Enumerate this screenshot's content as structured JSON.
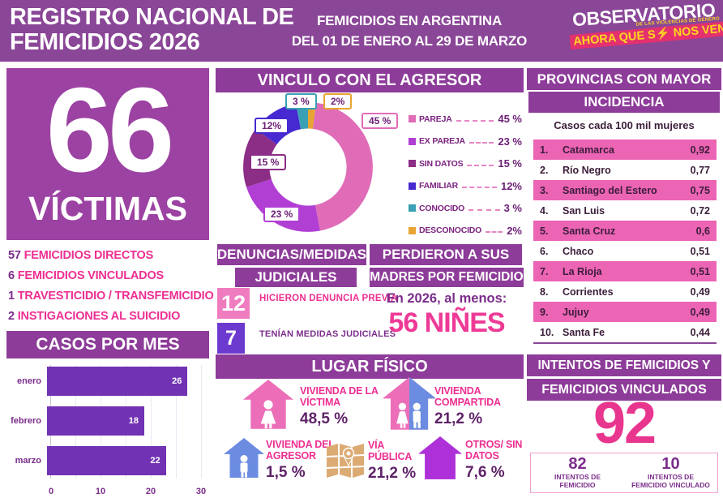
{
  "colors": {
    "header_purple": "#8a4697",
    "section_bar_purple": "#8d3c99",
    "victims_block_purple": "#9c42a2",
    "pink_text": "#ed2f92",
    "deep_purple_text": "#7b2d8b",
    "bar_chart_purple": "#7132b4",
    "table_row_pink": "#ec64b4",
    "box_pink": "#f07cc0",
    "box_violet": "#6d3ad0",
    "logo_yellow": "#ffd71e",
    "logo_pink": "#e3316f"
  },
  "header": {
    "title_line1": "REGISTRO NACIONAL DE",
    "title_line2": "FEMICIDIOS 2026",
    "subtitle_line1": "FEMICIDIOS EN ARGENTINA",
    "subtitle_line2": "DEL 01 DE ENERO AL 29 DE MARZO",
    "logo": {
      "name": "OBSERVATORIO",
      "small": "DE LAS VIOLENCIAS DE GÉNERO",
      "tagline": "AHORA QUE S⚡ NOS VEN"
    }
  },
  "victims": {
    "count": "66",
    "label": "VÍCTIMAS",
    "breakdown": [
      {
        "num": "57",
        "label": "FEMICIDIOS DIRECTOS"
      },
      {
        "num": "6",
        "label": "FEMICIDIOS VINCULADOS"
      },
      {
        "num": "1",
        "label": "TRAVESTICIDIO / TRANSFEMICIDIO"
      },
      {
        "num": "2",
        "label": "INSTIGACIONES AL SUICIDIO"
      }
    ]
  },
  "casos_por_mes": {
    "title": "CASOS POR MES"
  },
  "vinculo": {
    "title": "VINCULO CON EL AGRESOR"
  },
  "denuncias": {
    "title_line1": "DENUNCIAS/MEDIDAS",
    "title_line2": "JUDICIALES",
    "items": [
      {
        "num": "12",
        "label": "HICIERON DENUNCIA PREVIA"
      },
      {
        "num": "7",
        "label": "TENÍAN MEDIDAS JUDICIALES"
      }
    ]
  },
  "madres": {
    "title_line1": "PERDIERON A SUS",
    "title_line2": "MADRES POR FEMICIDIO",
    "intro": "En 2026, al menos:",
    "count": "56 NIÑES"
  },
  "lugar": {
    "title": "LUGAR FÍSICO",
    "items": [
      {
        "icon": "house-victim-icon",
        "line1": "VIVIENDA DE LA",
        "line2": "VÍCTIMA",
        "pct": "48,5 %"
      },
      {
        "icon": "house-shared-icon",
        "line1": "VIVIENDA",
        "line2": "COMPARTIDA",
        "pct": "21,2 %"
      },
      {
        "icon": "house-aggressor-icon",
        "line1": "VIVIENDA DEL",
        "line2": "AGRESOR",
        "pct": "1,5 %"
      },
      {
        "icon": "map-icon",
        "line1": "VÍA",
        "line2": "PÚBLICA",
        "pct": "21,2 %"
      },
      {
        "icon": "house-others-icon",
        "line1": "OTROS/ SIN",
        "line2": "DATOS",
        "pct": "7,6 %"
      }
    ]
  },
  "provincias": {
    "title_line1": "PROVINCIAS CON MAYOR",
    "title_line2": "INCIDENCIA",
    "subtitle": "Casos cada 100 mil mujeres",
    "rows": [
      {
        "rank": "1.",
        "name": "Catamarca",
        "value": "0,92",
        "highlight": true
      },
      {
        "rank": "2.",
        "name": "Río Negro",
        "value": "0,77",
        "highlight": false
      },
      {
        "rank": "3.",
        "name": "Santiago del Estero",
        "value": "0,75",
        "highlight": true
      },
      {
        "rank": "4.",
        "name": "San Luis",
        "value": "0,72",
        "highlight": false
      },
      {
        "rank": "5.",
        "name": "Santa Cruz",
        "value": "0,6",
        "highlight": true
      },
      {
        "rank": "6.",
        "name": "Chaco",
        "value": "0,51",
        "highlight": false
      },
      {
        "rank": "7.",
        "name": "La Rioja",
        "value": "0,51",
        "highlight": true
      },
      {
        "rank": "8.",
        "name": "Corrientes",
        "value": "0,49",
        "highlight": false
      },
      {
        "rank": "9.",
        "name": "Jujuy",
        "value": "0,49",
        "highlight": true
      },
      {
        "rank": "10.",
        "name": "Santa Fe",
        "value": "0,44",
        "highlight": false
      }
    ]
  },
  "intentos": {
    "title_line1": "INTENTOS DE FEMICIDIOS Y",
    "title_line2": "FEMICIDIOS VINCULADOS",
    "total": "92",
    "items": [
      {
        "num": "82",
        "label": "INTENTOS DE FEMICIDIO"
      },
      {
        "num": "10",
        "label": "INTENTOS DE FEMICIDIO VINCULADO"
      }
    ]
  },
  "chart_data": [
    {
      "type": "pie",
      "donut": true,
      "title": "VINCULO CON EL AGRESOR",
      "labels": [
        "PAREJA",
        "EX PAREJA",
        "SIN DATOS",
        "FAMILIAR",
        "CONOCIDO",
        "DESCONOCIDO"
      ],
      "values": [
        45,
        23,
        15,
        12,
        3,
        2
      ],
      "value_labels": [
        "45 %",
        "23 %",
        "15 %",
        "12%",
        "3 %",
        "2%"
      ],
      "colors": [
        "#e06cb8",
        "#b13fd4",
        "#8c2d86",
        "#4629d0",
        "#3aa0b4",
        "#e8a432"
      ],
      "legend_position": "right",
      "draw_order_from_top_clockwise": [
        5,
        0,
        1,
        2,
        3,
        4
      ]
    },
    {
      "type": "bar",
      "orientation": "horizontal",
      "title": "CASOS POR MES",
      "categories": [
        "enero",
        "febrero",
        "marzo"
      ],
      "values": [
        26,
        18,
        22
      ],
      "xlim": [
        0,
        30
      ],
      "xticks": [
        0,
        10,
        20,
        30
      ],
      "bar_color": "#7132b4",
      "grid": true
    }
  ]
}
